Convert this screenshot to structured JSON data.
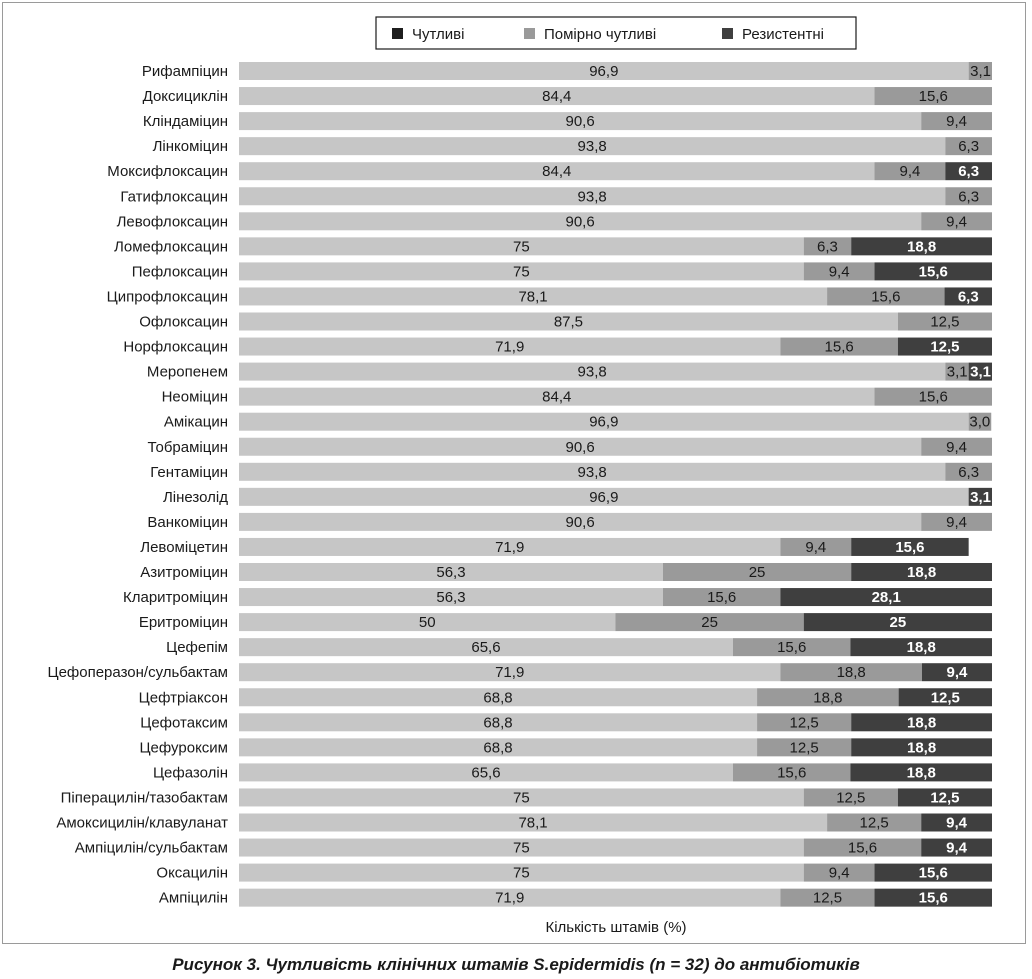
{
  "caption": "Рисунок 3.  Чутливість клінічних штамів S.epidermidis (n = 32) до антибіотиків",
  "chart_data": {
    "type": "bar",
    "orientation": "horizontal",
    "stacked": true,
    "percent": true,
    "xlabel": "Кількість штамів (%)",
    "legend_position": "top",
    "xlim": [
      0,
      100
    ],
    "colors": {
      "legend_sensitive": "#1e1e1e",
      "sensitive": "#c6c6c6",
      "moderate": "#9a9a9a",
      "resistant": "#3f3f3f",
      "label_dark": "#1a1a1a",
      "label_light": "#ffffff"
    },
    "categories": [
      "Рифампіцин",
      "Доксициклін",
      "Кліндаміцин",
      "Лінкоміцин",
      "Моксифлоксацин",
      "Гатифлоксацин",
      "Левофлоксацин",
      "Ломефлоксацин",
      "Пефлоксацин",
      "Ципрофлоксацин",
      "Офлоксацин",
      "Норфлоксацин",
      "Меропенем",
      "Неоміцин",
      "Амікацин",
      "Тобраміцин",
      "Гентаміцин",
      "Лінезолід",
      "Ванкоміцин",
      "Левоміцетин",
      "Азитроміцин",
      "Кларитроміцин",
      "Еритроміцин",
      "Цефепім",
      "Цефоперазон/сульбактам",
      "Цефтріаксон",
      "Цефотаксим",
      "Цефуроксим",
      "Цефазолін",
      "Піперацилін/тазобактам",
      "Амоксицилін/клавуланат",
      "Ампіцилін/сульбактам",
      "Оксацилін",
      "Ампіцилін"
    ],
    "series": [
      {
        "name": "Чутливі",
        "key": "sensitive",
        "values": [
          96.9,
          84.4,
          90.6,
          93.8,
          84.4,
          93.8,
          90.6,
          75,
          75,
          78.1,
          87.5,
          71.9,
          93.8,
          84.4,
          96.9,
          90.6,
          93.8,
          96.9,
          90.6,
          71.9,
          56.3,
          56.3,
          50,
          65.6,
          71.9,
          68.8,
          68.8,
          68.8,
          65.6,
          75,
          78.1,
          75,
          75,
          71.9
        ],
        "labels": [
          "96,9",
          "84,4",
          "90,6",
          "93,8",
          "84,4",
          "93,8",
          "90,6",
          "75",
          "75",
          "78,1",
          "87,5",
          "71,9",
          "93,8",
          "84,4",
          "96,9",
          "90,6",
          "93,8",
          "96,9",
          "90,6",
          "71,9",
          "56,3",
          "56,3",
          "50",
          "65,6",
          "71,9",
          "68,8",
          "68,8",
          "68,8",
          "65,6",
          "75",
          "78,1",
          "75",
          "75",
          "71,9"
        ]
      },
      {
        "name": "Помірно чутливі",
        "key": "moderate",
        "values": [
          3.1,
          15.6,
          9.4,
          6.3,
          9.4,
          6.3,
          9.4,
          6.3,
          9.4,
          15.6,
          12.5,
          15.6,
          3.1,
          15.6,
          3.0,
          9.4,
          6.3,
          0,
          9.4,
          9.4,
          25,
          15.6,
          25,
          15.6,
          18.8,
          18.8,
          12.5,
          12.5,
          15.6,
          12.5,
          12.5,
          15.6,
          9.4,
          12.5
        ],
        "labels": [
          "3,1",
          "15,6",
          "9,4",
          "6,3",
          "9,4",
          "6,3",
          "9,4",
          "6,3",
          "9,4",
          "15,6",
          "12,5",
          "15,6",
          "3,1",
          "15,6",
          "3,0",
          "9,4",
          "6,3",
          "",
          "9,4",
          "9,4",
          "25",
          "15,6",
          "25",
          "15,6",
          "18,8",
          "18,8",
          "12,5",
          "12,5",
          "15,6",
          "12,5",
          "12,5",
          "15,6",
          "9,4",
          "12,5"
        ]
      },
      {
        "name": "Резистентні",
        "key": "resistant",
        "values": [
          0,
          0,
          0,
          0,
          6.3,
          0,
          0,
          18.8,
          15.6,
          6.3,
          0,
          12.5,
          3.1,
          0,
          0,
          0,
          0,
          3.1,
          0,
          15.6,
          18.8,
          28.1,
          25,
          18.8,
          9.4,
          12.5,
          18.8,
          18.8,
          18.8,
          12.5,
          9.4,
          9.4,
          15.6,
          15.6
        ],
        "labels": [
          "",
          "",
          "",
          "",
          "6,3",
          "",
          "",
          "18,8",
          "15,6",
          "6,3",
          "",
          "12,5",
          "3,1",
          "",
          "",
          "",
          "",
          "3,1",
          "",
          "15,6",
          "18,8",
          "28,1",
          "25",
          "18,8",
          "9,4",
          "12,5",
          "18,8",
          "18,8",
          "18,8",
          "12,5",
          "9,4",
          "9,4",
          "15,6",
          "15,6"
        ]
      }
    ]
  }
}
